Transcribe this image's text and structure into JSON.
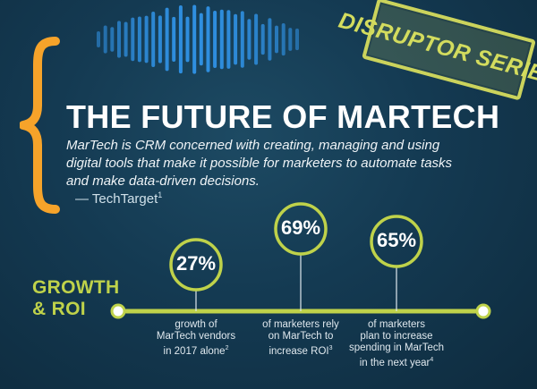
{
  "stamp": {
    "text": "DISRUPTOR SERIES"
  },
  "title": "THE FUTURE OF MARTECH",
  "quote": {
    "text": "MarTech is CRM concerned with creating, managing and using digital tools that make it possible for marketers to automate tasks and make data-driven decisions.",
    "attribution": "— TechTarget",
    "footnote": "1"
  },
  "section": {
    "line1": "GROWTH",
    "line2": "& ROI"
  },
  "stats": [
    {
      "value": "27%",
      "lines": [
        "growth of",
        "MarTech vendors",
        "in 2017 alone"
      ],
      "footnote": "2"
    },
    {
      "value": "69%",
      "lines": [
        "of marketers rely",
        "on MarTech to",
        "increase ROI"
      ],
      "footnote": "3"
    },
    {
      "value": "65%",
      "lines": [
        "of marketers",
        "plan to increase",
        "spending in MarTech",
        "in the next year"
      ],
      "footnote": "4"
    }
  ],
  "colors": {
    "background": "#143a52",
    "accent_green": "#bfd24a",
    "brace_orange": "#f6a32a",
    "wave_blue": "#2f8fe0",
    "stamp_yellow": "#d3dc5e"
  },
  "icons": {
    "decoration": "sound-waveform-icon",
    "brace": "curly-brace-icon"
  }
}
